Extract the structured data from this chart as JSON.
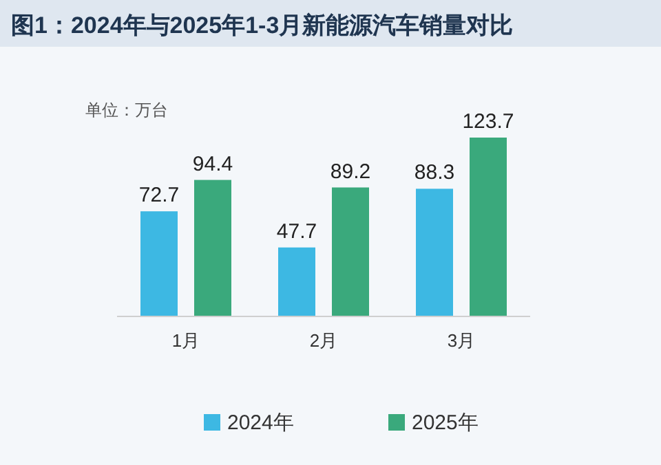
{
  "chart_data": {
    "type": "bar",
    "title": "图1：2024年与2025年1-3月新能源汽车销量对比",
    "annotations": [
      "单位：万台"
    ],
    "categories": [
      "1月",
      "2月",
      "3月"
    ],
    "series": [
      {
        "name": "2024年",
        "color": "#3db8e3",
        "values": [
          72.7,
          47.7,
          88.3
        ]
      },
      {
        "name": "2025年",
        "color": "#3aa97c",
        "values": [
          94.4,
          89.2,
          123.7
        ]
      }
    ],
    "data_labels": true,
    "legend": "bottom"
  }
}
